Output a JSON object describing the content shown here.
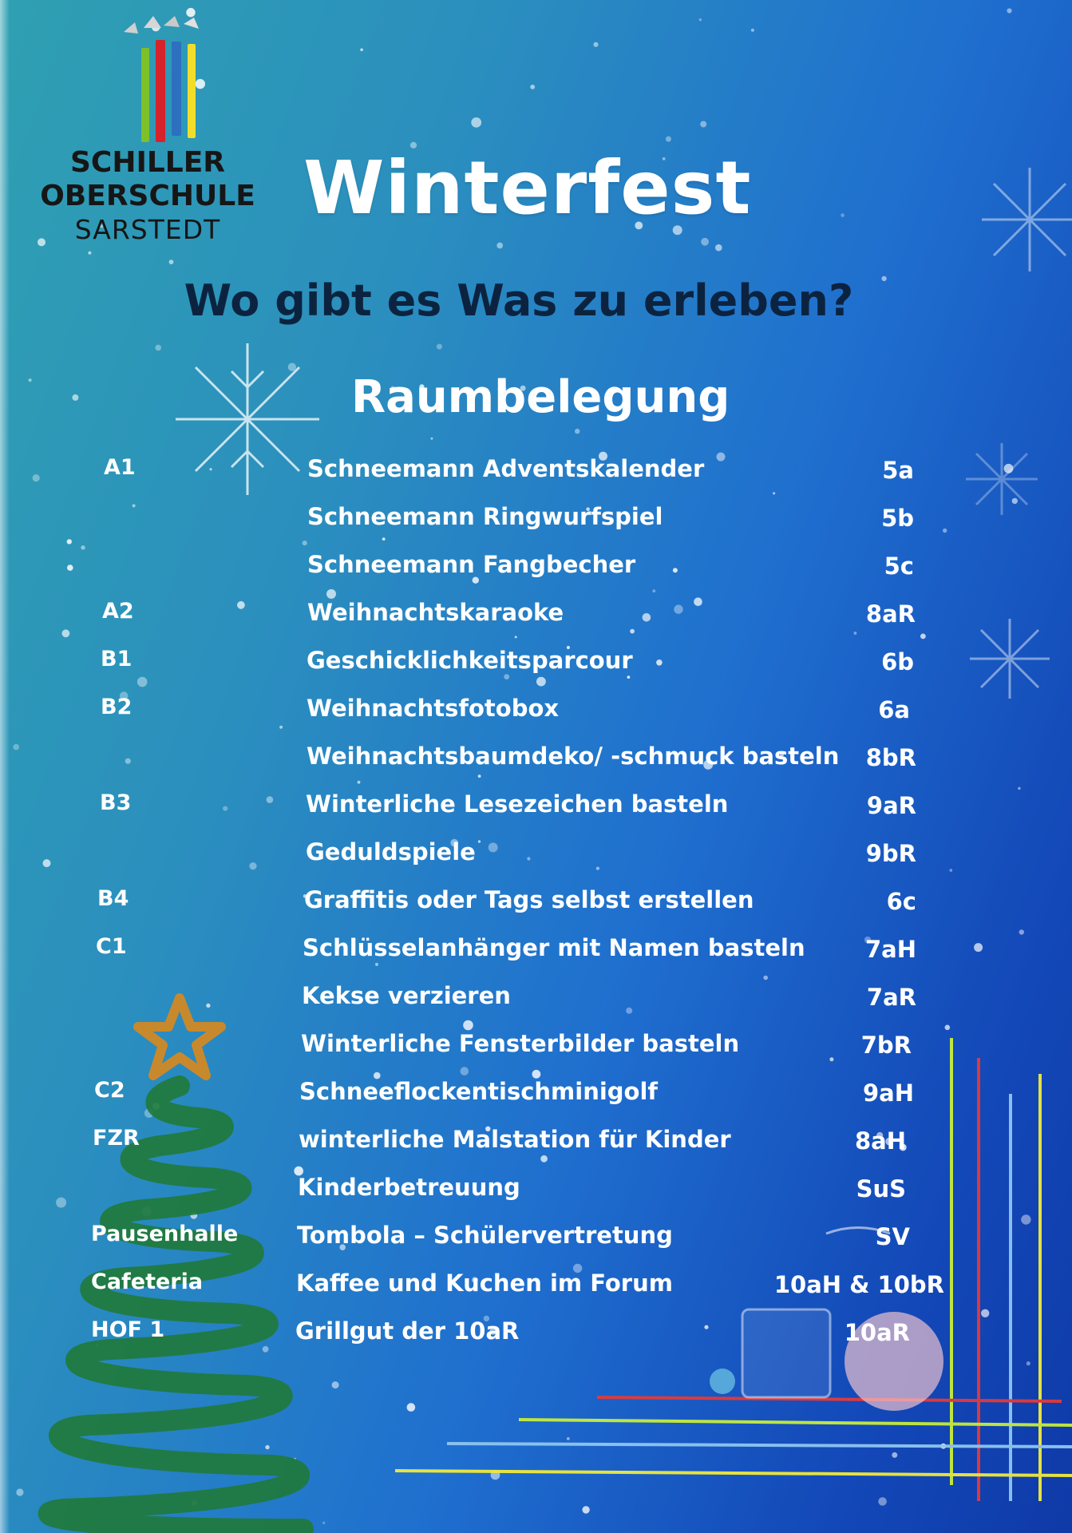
{
  "logo": {
    "line1": "SCHILLER",
    "line2": "OBERSCHULE",
    "line3": "SARSTEDT",
    "bar_colors": [
      "#7dc02a",
      "#d6222b",
      "#2e6fc0",
      "#f2dd2a"
    ]
  },
  "title": "Winterfest",
  "subtitle": "Wo gibt es Was zu erleben?",
  "heading": "Raumbelegung",
  "rows": [
    {
      "room": "A1",
      "activity": "Schneemann Adventskalender",
      "class": "5a"
    },
    {
      "room": "",
      "activity": "Schneemann Ringwurfspiel",
      "class": "5b"
    },
    {
      "room": "",
      "activity": "Schneemann Fangbecher",
      "class": "5c"
    },
    {
      "room": "A2",
      "activity": "Weihnachtskaraoke",
      "class": "8aR"
    },
    {
      "room": "B1",
      "activity": "Geschicklichkeitsparcour",
      "class": "6b"
    },
    {
      "room": "B2",
      "activity": "Weihnachtsfotobox",
      "class": "6a"
    },
    {
      "room": "",
      "activity": "Weihnachtsbaumdeko/ -schmuck basteln",
      "class": "8bR"
    },
    {
      "room": "B3",
      "activity": "Winterliche Lesezeichen basteln",
      "class": "9aR"
    },
    {
      "room": "",
      "activity": "Geduldspiele",
      "class": "9bR"
    },
    {
      "room": "B4",
      "activity": "Graffitis oder Tags selbst erstellen",
      "class": "6c"
    },
    {
      "room": "C1",
      "activity": "Schlüsselanhänger mit Namen basteln",
      "class": "7aH"
    },
    {
      "room": "",
      "activity": "Kekse verzieren",
      "class": "7aR"
    },
    {
      "room": "",
      "activity": "Winterliche Fensterbilder basteln",
      "class": "7bR"
    },
    {
      "room": "C2",
      "activity": "Schneeflockentischminigolf",
      "class": "9aH"
    },
    {
      "room": "FZR",
      "activity": "winterliche Malstation für Kinder",
      "class": "8aH"
    },
    {
      "room": "",
      "activity": "Kinderbetreuung",
      "class": "SuS"
    },
    {
      "room": "Pausenhalle",
      "activity": "Tombola – Schülervertretung",
      "class": "SV"
    },
    {
      "room": "Cafeteria",
      "activity": "Kaffee und Kuchen im Forum",
      "class": "10aH & 10bR"
    },
    {
      "room": "HOF 1",
      "activity": "Grillgut der 10aR",
      "class": "10aR"
    }
  ],
  "decorations": {
    "tree_color": "#1f7a3c",
    "star_color": "#c8892c",
    "line_colors": [
      "#e33a3a",
      "#c8ee3a",
      "#8fc7f0",
      "#f1ea3c",
      "#9bd3c0"
    ]
  }
}
